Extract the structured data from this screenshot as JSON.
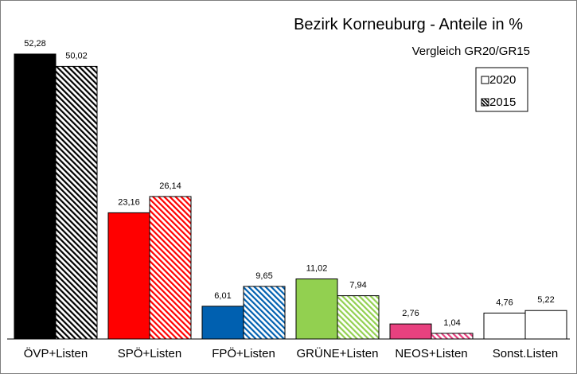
{
  "chart_data": {
    "type": "bar",
    "title": "Bezirk Korneuburg  - Anteile in %",
    "subtitle": "Vergleich GR20/GR15",
    "categories": [
      "ÖVP+Listen",
      "SPÖ+Listen",
      "FPÖ+Listen",
      "GRÜNE+Listen",
      "NEOS+Listen",
      "Sonst.Listen"
    ],
    "colors": [
      "#000000",
      "#ff0000",
      "#0060b0",
      "#92d050",
      "#e8417f",
      "#ffffff"
    ],
    "series": [
      {
        "name": "2020",
        "values": [
          52.28,
          23.16,
          6.01,
          11.02,
          2.76,
          4.76
        ],
        "labels": [
          "52,28",
          "23,16",
          "6,01",
          "11,02",
          "2,76",
          "4,76"
        ],
        "pattern": "solid"
      },
      {
        "name": "2015",
        "values": [
          50.02,
          26.14,
          9.65,
          7.94,
          1.04,
          5.22
        ],
        "labels": [
          "50,02",
          "26,14",
          "9,65",
          "7,94",
          "1,04",
          "5,22"
        ],
        "pattern": "hatched"
      }
    ],
    "ylim": [
      0,
      53
    ],
    "grid": false,
    "legend_position": "top-right"
  }
}
